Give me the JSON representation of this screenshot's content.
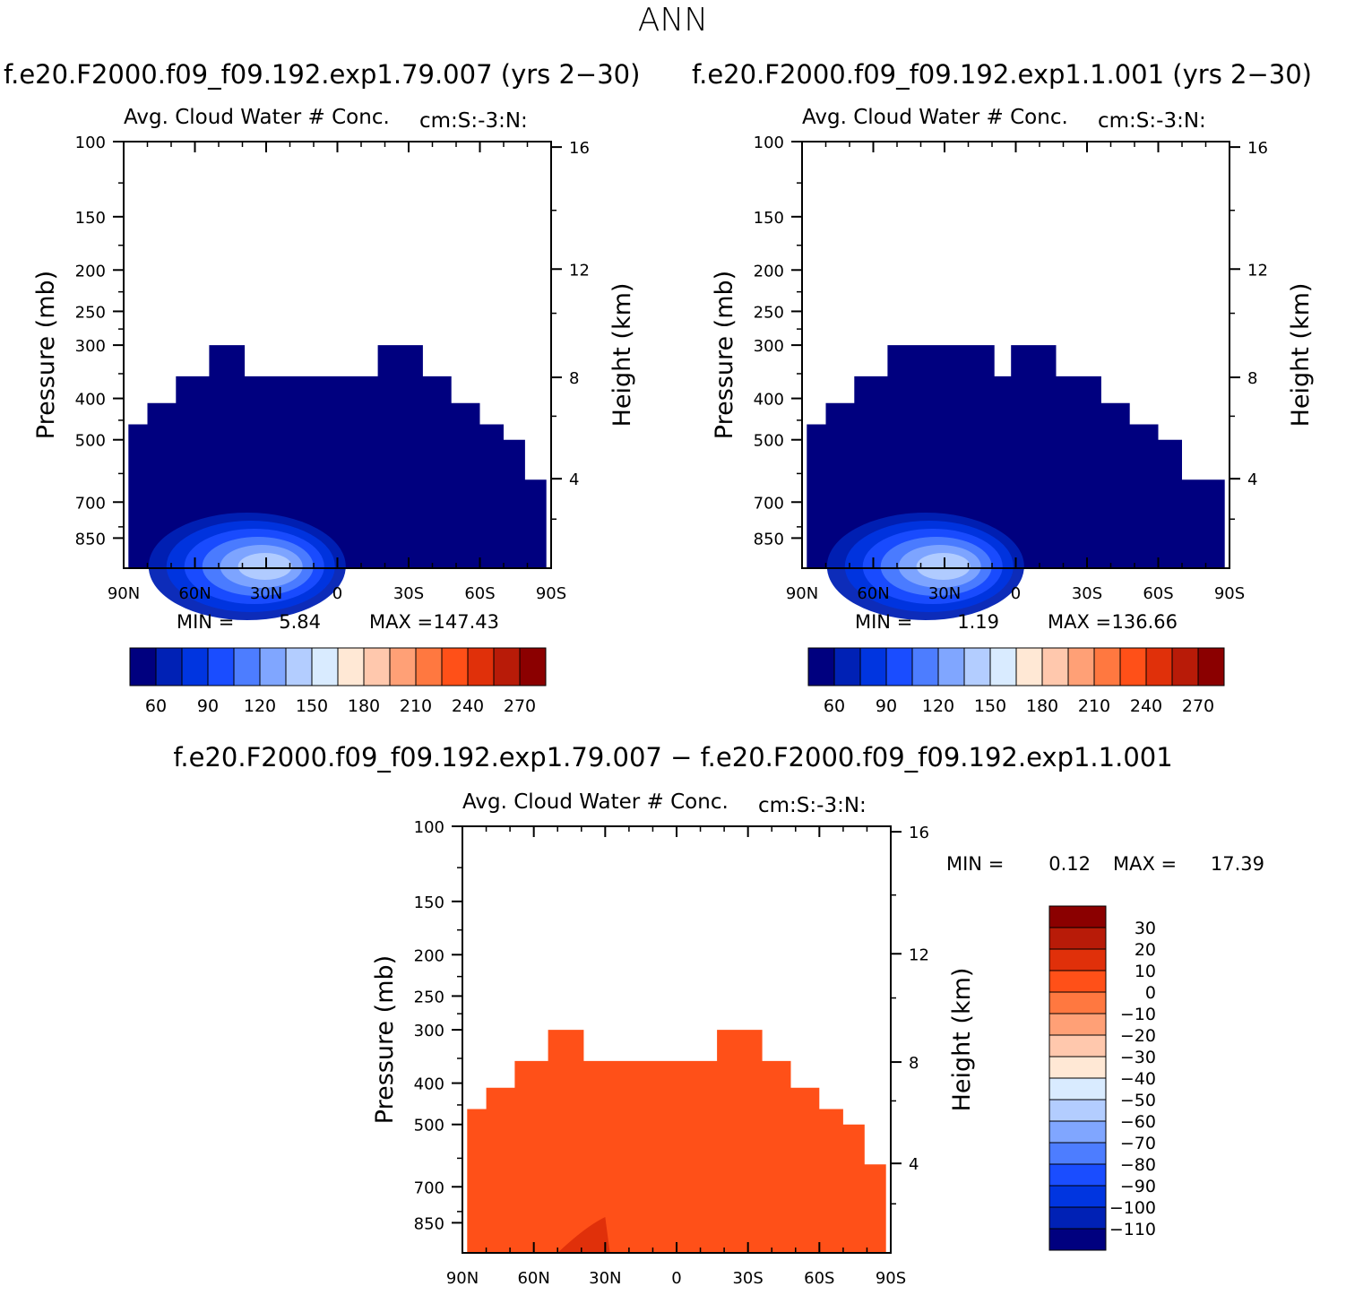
{
  "page": {
    "title": "ANN",
    "case1_header": "f.e20.F2000.f09_f09.192.exp1.79.007 (yrs 2−30)",
    "case2_header": "f.e20.F2000.f09_f09.192.exp1.1.001 (yrs 2−30)",
    "diff_header": "f.e20.F2000.f09_f09.192.exp1.79.007 − f.e20.F2000.f09_f09.192.exp1.1.001"
  },
  "chart_data": [
    {
      "id": "case1",
      "type": "heatmap",
      "title": "Avg. Cloud Water # Conc.",
      "units": "cm:S:-3:N:",
      "ylabel": "Pressure (mb)",
      "y2label": "Height (km)",
      "x_ticks": [
        "90N",
        "60N",
        "30N",
        "0",
        "30S",
        "60S",
        "90S"
      ],
      "y_ticks": [
        "100",
        "150",
        "200",
        "250",
        "300",
        "400",
        "500",
        "700",
        "850"
      ],
      "y2_ticks": [
        "16",
        "12",
        "8",
        "4"
      ],
      "xlim": [
        90,
        -90
      ],
      "ylim": [
        100,
        1000
      ],
      "yscale": "log",
      "min_label": "MIN =",
      "min": "5.84",
      "max_label": "MAX =",
      "max": "147.43",
      "dominant_color": "#00007f",
      "colorbar": {
        "labels": [
          "60",
          "90",
          "120",
          "150",
          "180",
          "210",
          "240",
          "270"
        ],
        "colors": [
          "#00007f",
          "#0021b5",
          "#0035e0",
          "#1a4dff",
          "#4d7dff",
          "#80a6ff",
          "#b3cdff",
          "#d9ebff",
          "#ffe8d5",
          "#ffc8ad",
          "#ffa076",
          "#ff7840",
          "#ff5018",
          "#e0300a",
          "#b81b08",
          "#8b0000"
        ]
      }
    },
    {
      "id": "case2",
      "type": "heatmap",
      "title": "Avg. Cloud Water # Conc.",
      "units": "cm:S:-3:N:",
      "ylabel": "Pressure (mb)",
      "y2label": "Height (km)",
      "x_ticks": [
        "90N",
        "60N",
        "30N",
        "0",
        "30S",
        "60S",
        "90S"
      ],
      "y_ticks": [
        "100",
        "150",
        "200",
        "250",
        "300",
        "400",
        "500",
        "700",
        "850"
      ],
      "y2_ticks": [
        "16",
        "12",
        "8",
        "4"
      ],
      "xlim": [
        90,
        -90
      ],
      "ylim": [
        100,
        1000
      ],
      "yscale": "log",
      "min_label": "MIN =",
      "min": "1.19",
      "max_label": "MAX =",
      "max": "136.66",
      "dominant_color": "#00007f",
      "colorbar": {
        "labels": [
          "60",
          "90",
          "120",
          "150",
          "180",
          "210",
          "240",
          "270"
        ],
        "colors": [
          "#00007f",
          "#0021b5",
          "#0035e0",
          "#1a4dff",
          "#4d7dff",
          "#80a6ff",
          "#b3cdff",
          "#d9ebff",
          "#ffe8d5",
          "#ffc8ad",
          "#ffa076",
          "#ff7840",
          "#ff5018",
          "#e0300a",
          "#b81b08",
          "#8b0000"
        ]
      }
    },
    {
      "id": "diff",
      "type": "heatmap",
      "title": "Avg. Cloud Water # Conc.",
      "units": "cm:S:-3:N:",
      "ylabel": "Pressure (mb)",
      "y2label": "Height (km)",
      "x_ticks": [
        "90N",
        "60N",
        "30N",
        "0",
        "30S",
        "60S",
        "90S"
      ],
      "y_ticks": [
        "100",
        "150",
        "200",
        "250",
        "300",
        "400",
        "500",
        "700",
        "850"
      ],
      "y2_ticks": [
        "16",
        "12",
        "8",
        "4"
      ],
      "xlim": [
        90,
        -90
      ],
      "ylim": [
        100,
        1000
      ],
      "yscale": "log",
      "min_label": "MIN =",
      "min": "0.12",
      "max_label": "MAX =",
      "max": "17.39",
      "dominant_color": "#ff5018",
      "colorbar": {
        "labels": [
          "30",
          "20",
          "10",
          "0",
          "−10",
          "−20",
          "−30",
          "−40",
          "−50",
          "−60",
          "−70",
          "−80",
          "−90",
          "−100",
          "−110"
        ],
        "colors": [
          "#8b0000",
          "#b81b08",
          "#e0300a",
          "#ff5018",
          "#ff7840",
          "#ffa076",
          "#ffc8ad",
          "#ffe8d5",
          "#d9ebff",
          "#b3cdff",
          "#80a6ff",
          "#4d7dff",
          "#1a4dff",
          "#0035e0",
          "#0021b5",
          "#00007f"
        ]
      }
    }
  ]
}
